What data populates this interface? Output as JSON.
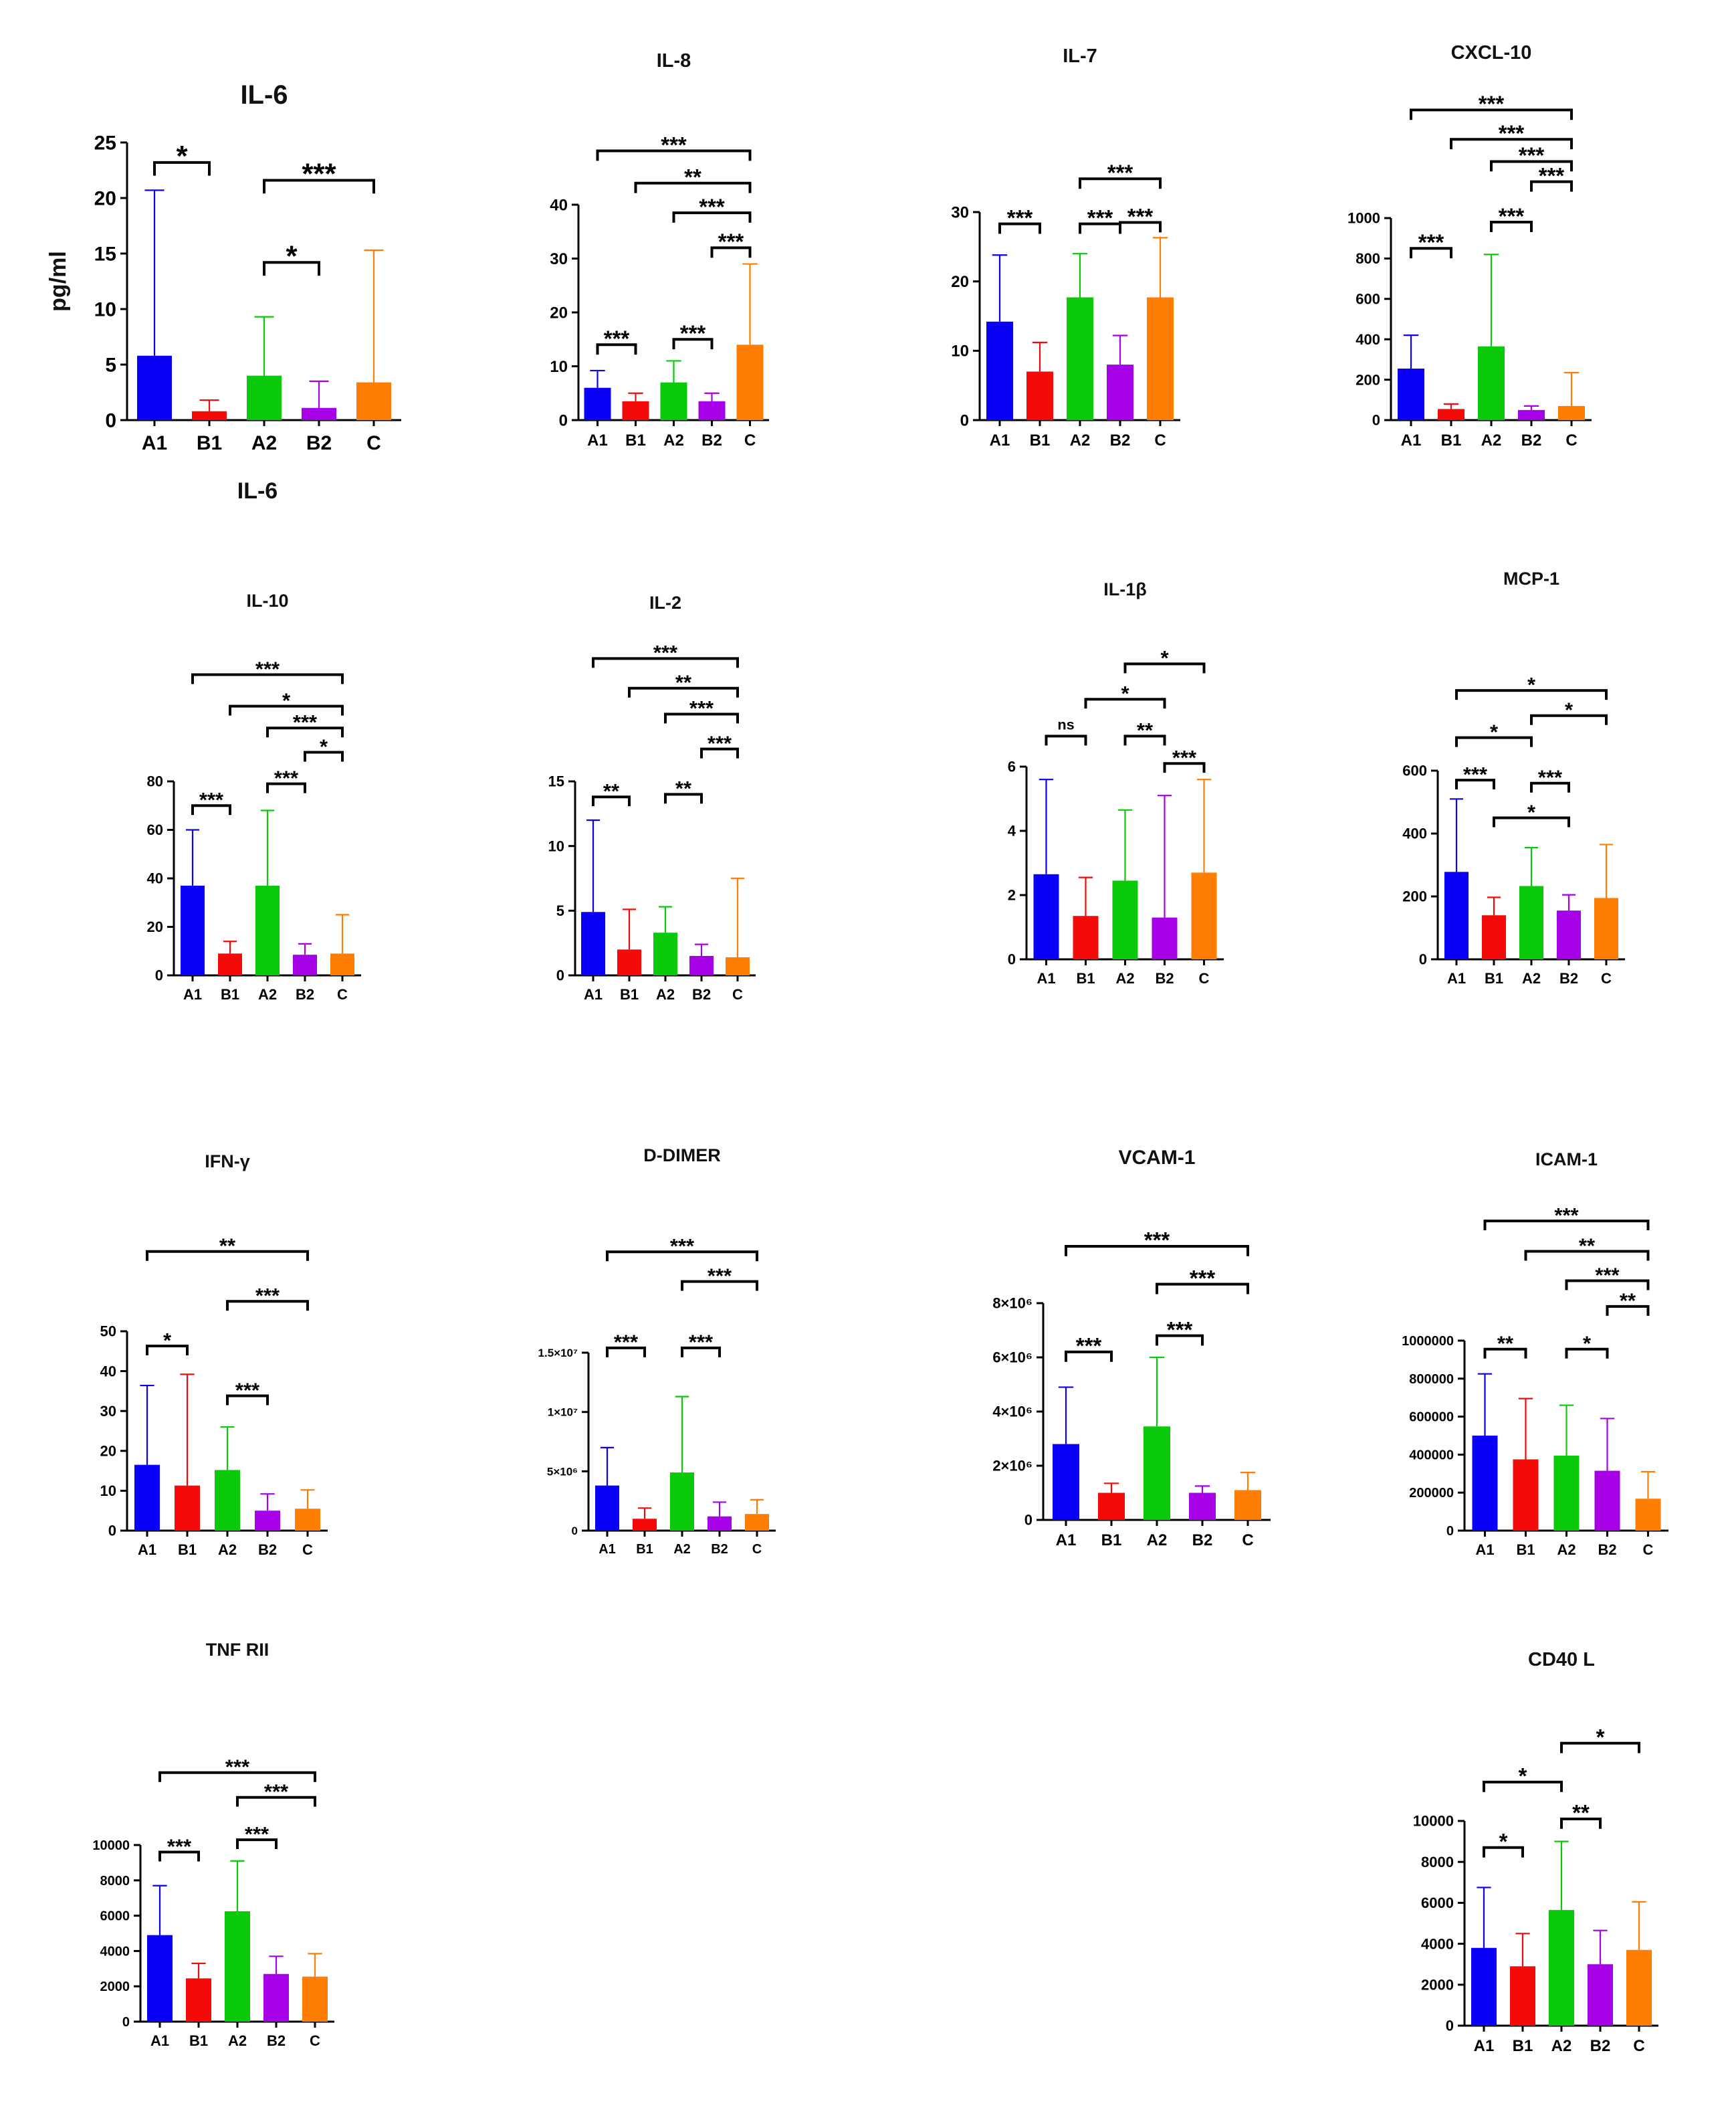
{
  "figure": {
    "categories": [
      "A1",
      "B1",
      "A2",
      "B2",
      "C"
    ]
  },
  "colors": [
    "#0a00f5",
    "#f50a0a",
    "#0ac80a",
    "#a500e6",
    "#ff7d00"
  ],
  "chart_data": [
    {
      "type": "bar",
      "title": "IL-6",
      "footer": "IL-6",
      "ylabel": "pg/ml",
      "categories": [
        "A1",
        "B1",
        "A2",
        "B2",
        "C"
      ],
      "values": [
        5.8,
        0.8,
        4.0,
        1.1,
        3.4
      ],
      "errors": [
        20.7,
        1.8,
        9.3,
        3.5,
        15.3
      ],
      "ylim": [
        0,
        25
      ],
      "ticks": [
        {
          "v": 0,
          "t": "0"
        },
        {
          "v": 5,
          "t": "5"
        },
        {
          "v": 10,
          "t": "10"
        },
        {
          "v": 15,
          "t": "15"
        },
        {
          "v": 20,
          "t": "20"
        },
        {
          "v": 25,
          "t": "25"
        }
      ],
      "sig": [
        {
          "a": 0,
          "b": 1,
          "y": 23.2,
          "label": "*"
        },
        {
          "a": 2,
          "b": 4,
          "y": 21.6,
          "label": "***"
        },
        {
          "a": 2,
          "b": 3,
          "y": 14.2,
          "label": "*"
        }
      ]
    },
    {
      "type": "bar",
      "title": "IL-8",
      "categories": [
        "A1",
        "B1",
        "A2",
        "B2",
        "C"
      ],
      "values": [
        6,
        3.5,
        7,
        3.5,
        14
      ],
      "errors": [
        9.2,
        5,
        11,
        5,
        29
      ],
      "ylim": [
        0,
        40
      ],
      "ticks": [
        {
          "v": 0,
          "t": "0"
        },
        {
          "v": 10,
          "t": "10"
        },
        {
          "v": 20,
          "t": "20"
        },
        {
          "v": 30,
          "t": "30"
        },
        {
          "v": 40,
          "t": "40"
        }
      ],
      "sig": [
        {
          "a": 0,
          "b": 4,
          "y": 50,
          "label": "***"
        },
        {
          "a": 1,
          "b": 4,
          "y": 44,
          "label": "**"
        },
        {
          "a": 2,
          "b": 4,
          "y": 38.5,
          "label": "***"
        },
        {
          "a": 3,
          "b": 4,
          "y": 32,
          "label": "***"
        },
        {
          "a": 0,
          "b": 1,
          "y": 14,
          "label": "***"
        },
        {
          "a": 2,
          "b": 3,
          "y": 15,
          "label": "***"
        }
      ]
    },
    {
      "type": "bar",
      "title": "IL-7",
      "categories": [
        "A1",
        "B1",
        "A2",
        "B2",
        "C"
      ],
      "values": [
        14.2,
        7,
        17.7,
        8,
        17.7
      ],
      "errors": [
        23.8,
        11.2,
        24,
        12.2,
        26.3
      ],
      "ylim": [
        0,
        30
      ],
      "ticks": [
        {
          "v": 0,
          "t": "0"
        },
        {
          "v": 10,
          "t": "10"
        },
        {
          "v": 20,
          "t": "20"
        },
        {
          "v": 30,
          "t": "30"
        }
      ],
      "sig": [
        {
          "a": 2,
          "b": 4,
          "y": 34.8,
          "label": "***"
        },
        {
          "a": 0,
          "b": 1,
          "y": 28.3,
          "label": "***"
        },
        {
          "a": 2,
          "b": 3,
          "y": 28.3,
          "label": "***"
        },
        {
          "a": 3,
          "b": 4,
          "y": 28.5,
          "label": "***"
        }
      ]
    },
    {
      "type": "bar",
      "title": "CXCL-10",
      "categories": [
        "A1",
        "B1",
        "A2",
        "B2",
        "C"
      ],
      "values": [
        255,
        55,
        365,
        50,
        70
      ],
      "errors": [
        420,
        80,
        820,
        70,
        235
      ],
      "ylim": [
        0,
        1000
      ],
      "ticks": [
        {
          "v": 0,
          "t": "0"
        },
        {
          "v": 200,
          "t": "200"
        },
        {
          "v": 400,
          "t": "400"
        },
        {
          "v": 600,
          "t": "600"
        },
        {
          "v": 800,
          "t": "800"
        },
        {
          "v": 1000,
          "t": "1000"
        }
      ],
      "sig": [
        {
          "a": 0,
          "b": 4,
          "y": 1535,
          "label": "***"
        },
        {
          "a": 1,
          "b": 4,
          "y": 1390,
          "label": "***"
        },
        {
          "a": 2,
          "b": 4,
          "y": 1280,
          "label": "***"
        },
        {
          "a": 3,
          "b": 4,
          "y": 1180,
          "label": "***"
        },
        {
          "a": 0,
          "b": 1,
          "y": 850,
          "label": "***"
        },
        {
          "a": 2,
          "b": 3,
          "y": 980,
          "label": "***"
        }
      ]
    },
    {
      "type": "bar",
      "title": "IL-10",
      "categories": [
        "A1",
        "B1",
        "A2",
        "B2",
        "C"
      ],
      "values": [
        37,
        9,
        37,
        8.5,
        9
      ],
      "errors": [
        60,
        14,
        68,
        13,
        25
      ],
      "ylim": [
        0,
        80
      ],
      "ticks": [
        {
          "v": 0,
          "t": "0"
        },
        {
          "v": 20,
          "t": "20"
        },
        {
          "v": 40,
          "t": "40"
        },
        {
          "v": 60,
          "t": "60"
        },
        {
          "v": 80,
          "t": "80"
        }
      ],
      "sig": [
        {
          "a": 0,
          "b": 4,
          "y": 124,
          "label": "***"
        },
        {
          "a": 1,
          "b": 4,
          "y": 111,
          "label": "*"
        },
        {
          "a": 2,
          "b": 4,
          "y": 102,
          "label": "***"
        },
        {
          "a": 3,
          "b": 4,
          "y": 92,
          "label": "*"
        },
        {
          "a": 0,
          "b": 1,
          "y": 70,
          "label": "***"
        },
        {
          "a": 2,
          "b": 3,
          "y": 79,
          "label": "***"
        }
      ]
    },
    {
      "type": "bar",
      "title": "IL-2",
      "categories": [
        "A1",
        "B1",
        "A2",
        "B2",
        "C"
      ],
      "values": [
        4.9,
        2,
        3.3,
        1.5,
        1.4
      ],
      "errors": [
        12,
        5.1,
        5.3,
        2.4,
        7.5
      ],
      "ylim": [
        0,
        15
      ],
      "ticks": [
        {
          "v": 0,
          "t": "0"
        },
        {
          "v": 5,
          "t": "5"
        },
        {
          "v": 10,
          "t": "10"
        },
        {
          "v": 15,
          "t": "15"
        }
      ],
      "sig": [
        {
          "a": 0,
          "b": 4,
          "y": 24.5,
          "label": "***"
        },
        {
          "a": 1,
          "b": 4,
          "y": 22.2,
          "label": "**"
        },
        {
          "a": 2,
          "b": 4,
          "y": 20.2,
          "label": "***"
        },
        {
          "a": 3,
          "b": 4,
          "y": 17.5,
          "label": "***"
        },
        {
          "a": 0,
          "b": 1,
          "y": 13.8,
          "label": "**"
        },
        {
          "a": 2,
          "b": 3,
          "y": 14,
          "label": "**"
        }
      ]
    },
    {
      "type": "bar",
      "title": "IL-1β",
      "categories": [
        "A1",
        "B1",
        "A2",
        "B2",
        "C"
      ],
      "values": [
        2.65,
        1.35,
        2.45,
        1.3,
        2.7
      ],
      "errors": [
        5.6,
        2.55,
        4.65,
        5.1,
        5.6
      ],
      "ylim": [
        0,
        6
      ],
      "ticks": [
        {
          "v": 0,
          "t": "0"
        },
        {
          "v": 2,
          "t": "2"
        },
        {
          "v": 4,
          "t": "4"
        },
        {
          "v": 6,
          "t": "6"
        }
      ],
      "sig": [
        {
          "a": 2,
          "b": 4,
          "y": 9.2,
          "label": "*"
        },
        {
          "a": 1,
          "b": 3,
          "y": 8.1,
          "label": "*"
        },
        {
          "a": 0,
          "b": 1,
          "y": 6.95,
          "label": "ns"
        },
        {
          "a": 2,
          "b": 3,
          "y": 6.95,
          "label": "**"
        },
        {
          "a": 3,
          "b": 4,
          "y": 6.1,
          "label": "***"
        }
      ]
    },
    {
      "type": "bar",
      "title": "MCP-1",
      "categories": [
        "A1",
        "B1",
        "A2",
        "B2",
        "C"
      ],
      "values": [
        278,
        140,
        233,
        155,
        195
      ],
      "errors": [
        510,
        197,
        355,
        205,
        365
      ],
      "ylim": [
        0,
        600
      ],
      "ticks": [
        {
          "v": 0,
          "t": "0"
        },
        {
          "v": 200,
          "t": "200"
        },
        {
          "v": 400,
          "t": "400"
        },
        {
          "v": 600,
          "t": "600"
        }
      ],
      "sig": [
        {
          "a": 0,
          "b": 4,
          "y": 855,
          "label": "*"
        },
        {
          "a": 2,
          "b": 4,
          "y": 775,
          "label": "*"
        },
        {
          "a": 0,
          "b": 2,
          "y": 705,
          "label": "*"
        },
        {
          "a": 0,
          "b": 1,
          "y": 570,
          "label": "***"
        },
        {
          "a": 2,
          "b": 3,
          "y": 560,
          "label": "***"
        },
        {
          "a": 1,
          "b": 3,
          "y": 450,
          "label": "*"
        }
      ]
    },
    {
      "type": "bar",
      "title": "IFN-γ",
      "categories": [
        "A1",
        "B1",
        "A2",
        "B2",
        "C"
      ],
      "values": [
        16.5,
        11.3,
        15.2,
        5,
        5.5
      ],
      "errors": [
        36.4,
        39.2,
        26,
        9.2,
        10.2
      ],
      "ylim": [
        0,
        50
      ],
      "ticks": [
        {
          "v": 0,
          "t": "0"
        },
        {
          "v": 10,
          "t": "10"
        },
        {
          "v": 20,
          "t": "20"
        },
        {
          "v": 30,
          "t": "30"
        },
        {
          "v": 40,
          "t": "40"
        },
        {
          "v": 50,
          "t": "50"
        }
      ],
      "sig": [
        {
          "a": 0,
          "b": 4,
          "y": 70,
          "label": "**"
        },
        {
          "a": 2,
          "b": 4,
          "y": 57.5,
          "label": "***"
        },
        {
          "a": 0,
          "b": 1,
          "y": 46.3,
          "label": "*"
        },
        {
          "a": 2,
          "b": 3,
          "y": 33.8,
          "label": "***"
        }
      ]
    },
    {
      "type": "bar",
      "title": "D-DIMER",
      "categories": [
        "A1",
        "B1",
        "A2",
        "B2",
        "C"
      ],
      "values": [
        3800000,
        1000000,
        4900000,
        1200000,
        1400000
      ],
      "errors": [
        7000000,
        1900000,
        11300000,
        2400000,
        2600000
      ],
      "ylim": [
        0,
        15000000
      ],
      "ticks": [
        {
          "v": 0,
          "t": "0"
        },
        {
          "v": 5000000,
          "t": "5×10⁶"
        },
        {
          "v": 10000000,
          "t": "1×10⁷"
        },
        {
          "v": 15000000,
          "t": "1.5×10⁷"
        }
      ],
      "sig": [
        {
          "a": 0,
          "b": 4,
          "y": 23500000,
          "label": "***"
        },
        {
          "a": 2,
          "b": 4,
          "y": 21000000,
          "label": "***"
        },
        {
          "a": 0,
          "b": 1,
          "y": 15400000,
          "label": "***"
        },
        {
          "a": 2,
          "b": 3,
          "y": 15400000,
          "label": "***"
        }
      ]
    },
    {
      "type": "bar",
      "title": "VCAM-1",
      "categories": [
        "A1",
        "B1",
        "A2",
        "B2",
        "C"
      ],
      "values": [
        2800000,
        1000000,
        3450000,
        1000000,
        1100000
      ],
      "errors": [
        4900000,
        1350000,
        6000000,
        1250000,
        1750000
      ],
      "ylim": [
        0,
        8000000
      ],
      "ticks": [
        {
          "v": 0,
          "t": "0"
        },
        {
          "v": 2000000,
          "t": "2×10⁶"
        },
        {
          "v": 4000000,
          "t": "4×10⁶"
        },
        {
          "v": 6000000,
          "t": "6×10⁶"
        },
        {
          "v": 8000000,
          "t": "8×10⁶"
        }
      ],
      "sig": [
        {
          "a": 0,
          "b": 4,
          "y": 10100000,
          "label": "***"
        },
        {
          "a": 2,
          "b": 4,
          "y": 8700000,
          "label": "***"
        },
        {
          "a": 0,
          "b": 1,
          "y": 6200000,
          "label": "***"
        },
        {
          "a": 2,
          "b": 3,
          "y": 6800000,
          "label": "***"
        }
      ]
    },
    {
      "type": "bar",
      "title": "ICAM-1",
      "categories": [
        "A1",
        "B1",
        "A2",
        "B2",
        "C"
      ],
      "values": [
        500000,
        375000,
        395000,
        315000,
        168000
      ],
      "errors": [
        825000,
        695000,
        660000,
        590000,
        310000
      ],
      "ylim": [
        0,
        1000000
      ],
      "ticks": [
        {
          "v": 0,
          "t": "0"
        },
        {
          "v": 200000,
          "t": "200000"
        },
        {
          "v": 400000,
          "t": "400000"
        },
        {
          "v": 600000,
          "t": "600000"
        },
        {
          "v": 800000,
          "t": "800000"
        },
        {
          "v": 1000000,
          "t": "1000000"
        }
      ],
      "sig": [
        {
          "a": 0,
          "b": 4,
          "y": 1630000,
          "label": "***"
        },
        {
          "a": 1,
          "b": 4,
          "y": 1470000,
          "label": "**"
        },
        {
          "a": 2,
          "b": 4,
          "y": 1315000,
          "label": "***"
        },
        {
          "a": 3,
          "b": 4,
          "y": 1180000,
          "label": "**"
        },
        {
          "a": 0,
          "b": 1,
          "y": 955000,
          "label": "**"
        },
        {
          "a": 2,
          "b": 3,
          "y": 955000,
          "label": "*"
        }
      ]
    },
    {
      "type": "bar",
      "title": "TNF RII",
      "categories": [
        "A1",
        "B1",
        "A2",
        "B2",
        "C"
      ],
      "values": [
        4900,
        2450,
        6250,
        2700,
        2550
      ],
      "errors": [
        7700,
        3300,
        9100,
        3700,
        3850
      ],
      "ylim": [
        0,
        10000
      ],
      "ticks": [
        {
          "v": 0,
          "t": "0"
        },
        {
          "v": 2000,
          "t": "2000"
        },
        {
          "v": 4000,
          "t": "4000"
        },
        {
          "v": 6000,
          "t": "6000"
        },
        {
          "v": 8000,
          "t": "8000"
        },
        {
          "v": 10000,
          "t": "10000"
        }
      ],
      "sig": [
        {
          "a": 0,
          "b": 4,
          "y": 14100,
          "label": "***"
        },
        {
          "a": 2,
          "b": 4,
          "y": 12700,
          "label": "***"
        },
        {
          "a": 0,
          "b": 1,
          "y": 9600,
          "label": "***"
        },
        {
          "a": 2,
          "b": 3,
          "y": 10300,
          "label": "***"
        }
      ]
    },
    {
      "type": "bar",
      "title": "CD40 L",
      "categories": [
        "A1",
        "B1",
        "A2",
        "B2",
        "C"
      ],
      "values": [
        3800,
        2900,
        5650,
        3000,
        3700
      ],
      "errors": [
        6750,
        4500,
        9000,
        4650,
        6050
      ],
      "ylim": [
        0,
        10000
      ],
      "ticks": [
        {
          "v": 0,
          "t": "0"
        },
        {
          "v": 2000,
          "t": "2000"
        },
        {
          "v": 4000,
          "t": "4000"
        },
        {
          "v": 6000,
          "t": "6000"
        },
        {
          "v": 8000,
          "t": "8000"
        },
        {
          "v": 10000,
          "t": "10000"
        }
      ],
      "sig": [
        {
          "a": 2,
          "b": 4,
          "y": 13800,
          "label": "*"
        },
        {
          "a": 0,
          "b": 2,
          "y": 11900,
          "label": "*"
        },
        {
          "a": 2,
          "b": 3,
          "y": 10100,
          "label": "**"
        },
        {
          "a": 0,
          "b": 1,
          "y": 8700,
          "label": "*"
        }
      ]
    }
  ]
}
